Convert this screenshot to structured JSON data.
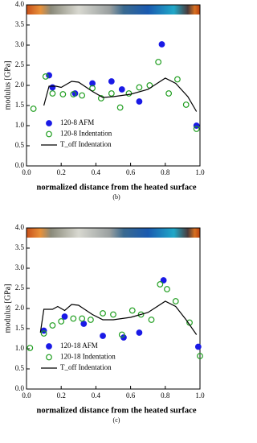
{
  "chart_data": [
    {
      "type": "scatter",
      "xlabel": "normalized distance from the heated surface",
      "ylabel": "modulus [GPa]",
      "caption": "(b)",
      "xlim": [
        0,
        1
      ],
      "ylim": [
        0,
        4
      ],
      "xticks": [
        {
          "value": 0,
          "label": "0.0"
        },
        0.2,
        0.4,
        0.6,
        0.8,
        {
          "value": 1,
          "label": "1.0"
        }
      ],
      "yticks": [
        {
          "value": 0,
          "label": "0.0"
        },
        0.5,
        {
          "value": 1,
          "label": "1.0"
        },
        1.5,
        {
          "value": 2,
          "label": "2.0"
        },
        2.5,
        {
          "value": 3,
          "label": "3.0"
        },
        3.5,
        {
          "value": 4,
          "label": "4.0"
        }
      ],
      "legend": "lower left",
      "series": [
        {
          "name": "120-8 AFM",
          "color": "#1a1ae6",
          "marker": "filled",
          "x": [
            0.13,
            0.15,
            0.28,
            0.38,
            0.49,
            0.55,
            0.65,
            0.78,
            0.98
          ],
          "values": [
            2.25,
            1.95,
            1.8,
            2.05,
            2.1,
            1.9,
            1.6,
            3.02,
            1.0
          ]
        },
        {
          "name": "120-8 Indentation",
          "color": "#1f9e1f",
          "marker": "open",
          "x": [
            0.04,
            0.11,
            0.15,
            0.21,
            0.27,
            0.32,
            0.38,
            0.43,
            0.49,
            0.54,
            0.59,
            0.65,
            0.71,
            0.76,
            0.82,
            0.87,
            0.92,
            0.98
          ],
          "values": [
            1.42,
            2.22,
            1.8,
            1.78,
            1.78,
            1.75,
            1.93,
            1.68,
            1.8,
            1.45,
            1.8,
            1.95,
            2.0,
            2.58,
            1.8,
            2.15,
            1.52,
            0.92
          ]
        },
        {
          "name": "T_off Indentation",
          "color": "#000000",
          "marker": "line",
          "x": [
            0.1,
            0.13,
            0.17,
            0.2,
            0.26,
            0.3,
            0.38,
            0.44,
            0.5,
            0.6,
            0.7,
            0.8,
            0.86,
            0.93,
            0.98
          ],
          "values": [
            1.5,
            1.98,
            1.98,
            1.95,
            2.1,
            2.08,
            1.85,
            1.7,
            1.72,
            1.78,
            1.9,
            2.18,
            2.05,
            1.72,
            1.35
          ]
        }
      ]
    },
    {
      "type": "scatter",
      "xlabel": "normalized distance from the heated surface",
      "ylabel": "modulus [GPa]",
      "caption": "(c)",
      "xlim": [
        0,
        1
      ],
      "ylim": [
        0,
        4
      ],
      "xticks": [
        {
          "value": 0,
          "label": "0.0"
        },
        0.2,
        0.4,
        0.6,
        0.8,
        {
          "value": 1,
          "label": "1.0"
        }
      ],
      "yticks": [
        {
          "value": 0,
          "label": "0.0"
        },
        0.5,
        {
          "value": 1,
          "label": "1.0"
        },
        1.5,
        {
          "value": 2,
          "label": "2.0"
        },
        2.5,
        {
          "value": 3,
          "label": "3.0"
        },
        3.5,
        {
          "value": 4,
          "label": "4.0"
        }
      ],
      "legend": "lower left",
      "series": [
        {
          "name": "120-18 AFM",
          "color": "#1a1ae6",
          "marker": "filled",
          "x": [
            0.1,
            0.22,
            0.33,
            0.44,
            0.56,
            0.65,
            0.79,
            0.99
          ],
          "values": [
            1.45,
            1.8,
            1.62,
            1.32,
            1.28,
            1.4,
            2.7,
            1.05
          ]
        },
        {
          "name": "120-18 Indentation",
          "color": "#1f9e1f",
          "marker": "open",
          "x": [
            0.02,
            0.1,
            0.15,
            0.2,
            0.27,
            0.32,
            0.37,
            0.44,
            0.5,
            0.55,
            0.61,
            0.66,
            0.72,
            0.77,
            0.81,
            0.86,
            0.94,
            1.0
          ],
          "values": [
            1.02,
            1.38,
            1.58,
            1.68,
            1.75,
            1.75,
            1.72,
            1.88,
            1.85,
            1.35,
            1.95,
            1.85,
            1.72,
            2.6,
            2.48,
            2.18,
            1.65,
            0.82
          ]
        },
        {
          "name": "T_off Indentation",
          "color": "#000000",
          "marker": "line",
          "x": [
            0.08,
            0.1,
            0.15,
            0.18,
            0.22,
            0.26,
            0.3,
            0.38,
            0.44,
            0.5,
            0.6,
            0.7,
            0.8,
            0.86,
            0.92,
            0.98
          ],
          "values": [
            1.4,
            1.98,
            1.98,
            2.05,
            1.95,
            2.1,
            2.08,
            1.85,
            1.72,
            1.72,
            1.78,
            1.9,
            2.18,
            2.05,
            1.72,
            1.35
          ]
        }
      ]
    }
  ]
}
